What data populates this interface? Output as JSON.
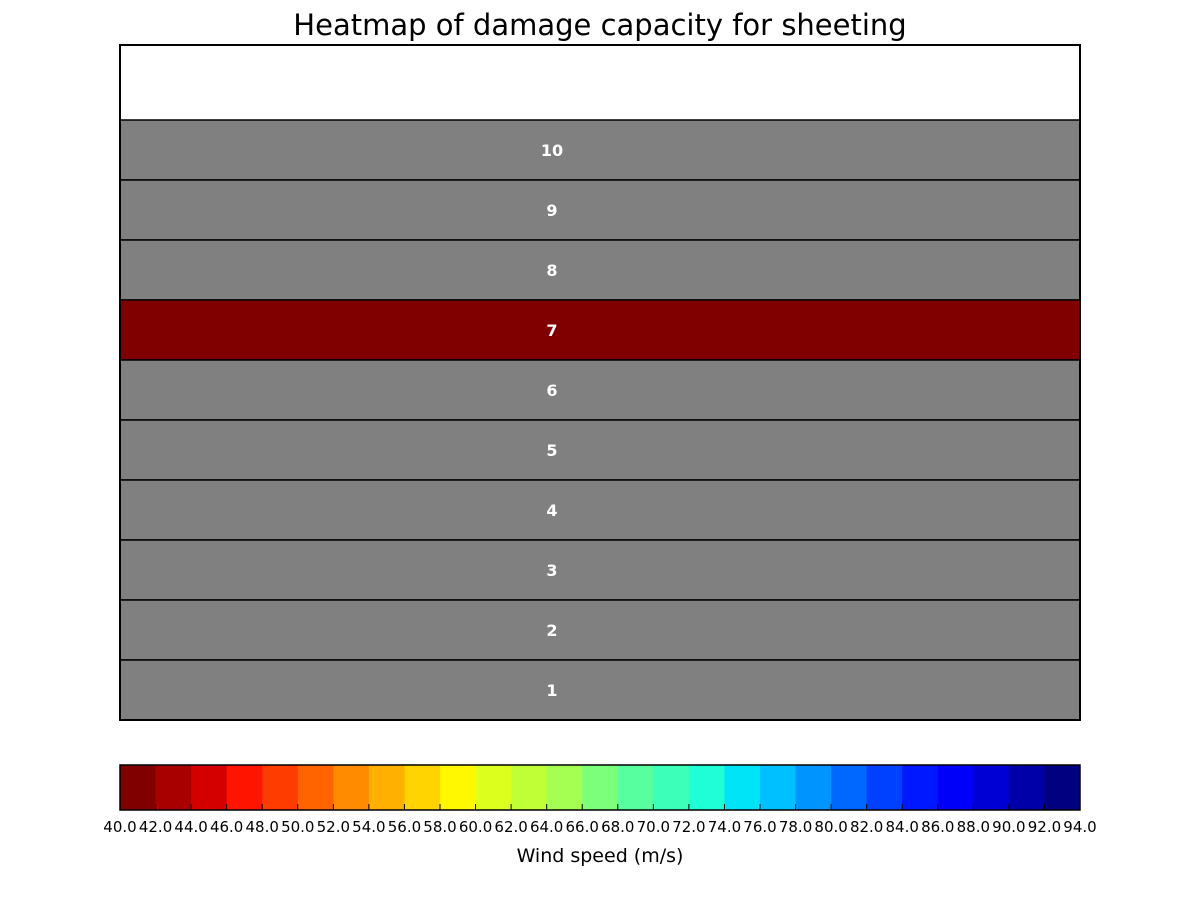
{
  "chart_data": {
    "type": "heatmap",
    "title": "Heatmap of damage capacity for sheeting",
    "rows": [
      {
        "label": "10",
        "value": null
      },
      {
        "label": "9",
        "value": null
      },
      {
        "label": "8",
        "value": null
      },
      {
        "label": "7",
        "value": 40.0
      },
      {
        "label": "6",
        "value": null
      },
      {
        "label": "5",
        "value": null
      },
      {
        "label": "4",
        "value": null
      },
      {
        "label": "3",
        "value": null
      },
      {
        "label": "2",
        "value": null
      },
      {
        "label": "1",
        "value": null
      }
    ],
    "no_data_color": "#808080",
    "colorbar": {
      "label": "Wind speed (m/s)",
      "range": [
        40.0,
        94.0
      ],
      "ticks": [
        "40.0",
        "42.0",
        "44.0",
        "46.0",
        "48.0",
        "50.0",
        "52.0",
        "54.0",
        "56.0",
        "58.0",
        "60.0",
        "62.0",
        "64.0",
        "66.0",
        "68.0",
        "70.0",
        "72.0",
        "74.0",
        "76.0",
        "78.0",
        "80.0",
        "82.0",
        "84.0",
        "86.0",
        "88.0",
        "90.0",
        "92.0",
        "94.0"
      ],
      "colors": [
        "#800000",
        "#a80000",
        "#d40000",
        "#ff1400",
        "#ff3c00",
        "#ff6400",
        "#ff8c00",
        "#ffb000",
        "#ffd400",
        "#fff800",
        "#dcff1e",
        "#c0ff36",
        "#a4ff52",
        "#7cff7a",
        "#58ff9e",
        "#3cffba",
        "#1effd6",
        "#00e4f8",
        "#00c0ff",
        "#0094ff",
        "#0068ff",
        "#0040ff",
        "#0018ff",
        "#0000fa",
        "#0000d4",
        "#0000a8",
        "#000080"
      ],
      "orientation": "horizontal"
    }
  }
}
